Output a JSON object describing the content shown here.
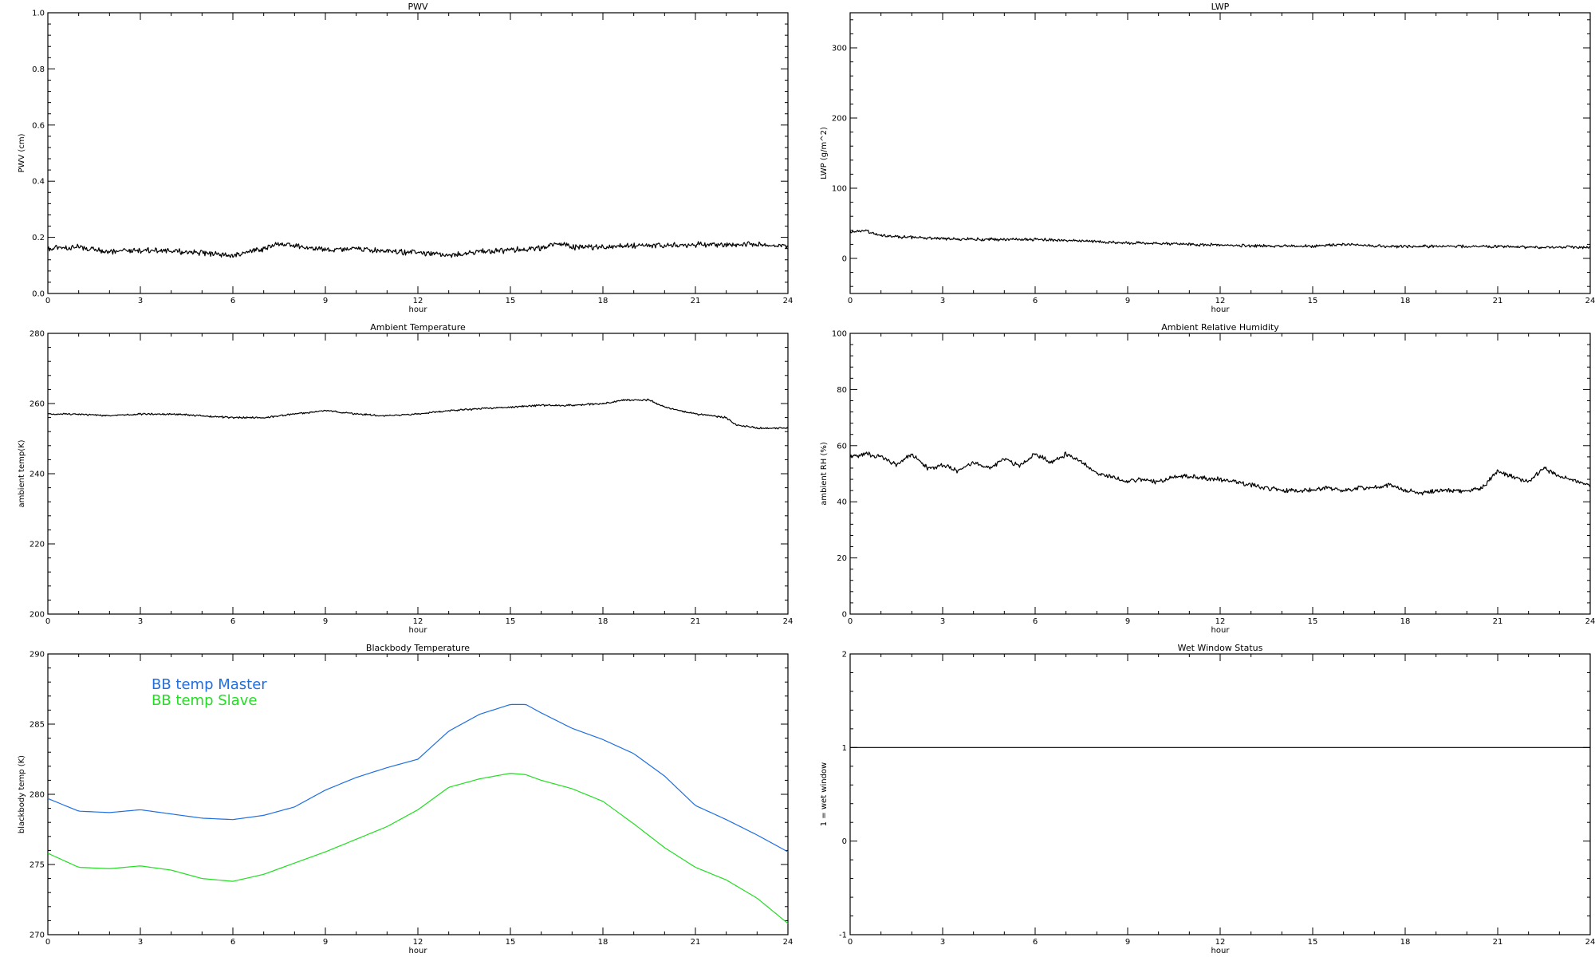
{
  "chart_data": [
    {
      "type": "line",
      "title": "PWV",
      "xlabel": "hour",
      "ylabel": "PWV (cm)",
      "xlim": [
        0,
        24
      ],
      "ylim": [
        0,
        1.0
      ],
      "xticks": [
        0,
        3,
        6,
        9,
        12,
        15,
        18,
        21,
        24
      ],
      "yticks": [
        0.0,
        0.2,
        0.4,
        0.6,
        0.8,
        1.0
      ],
      "ytick_labels": [
        "0.0",
        "0.2",
        "0.4",
        "0.6",
        "0.8",
        "1.0"
      ],
      "noise": 0.012,
      "series": [
        {
          "color": "#000000",
          "x": [
            0,
            1,
            2,
            3,
            4,
            5,
            6,
            7,
            7.5,
            8,
            9,
            10,
            11,
            12,
            13,
            14,
            15,
            16,
            16.5,
            17,
            18,
            19,
            20,
            21,
            22,
            23,
            24
          ],
          "y": [
            0.16,
            0.165,
            0.15,
            0.155,
            0.15,
            0.145,
            0.135,
            0.16,
            0.18,
            0.17,
            0.155,
            0.16,
            0.15,
            0.145,
            0.135,
            0.15,
            0.155,
            0.16,
            0.18,
            0.165,
            0.165,
            0.17,
            0.17,
            0.175,
            0.175,
            0.175,
            0.17
          ]
        }
      ]
    },
    {
      "type": "line",
      "title": "LWP",
      "xlabel": "hour",
      "ylabel": "LWP (g/m^2)",
      "xlim": [
        0,
        24
      ],
      "ylim": [
        -50,
        350
      ],
      "xticks": [
        0,
        3,
        6,
        9,
        12,
        15,
        18,
        21,
        24
      ],
      "yticks": [
        0,
        100,
        200,
        300
      ],
      "ytick_labels": [
        "0",
        "100",
        "200",
        "300"
      ],
      "noise": 2.5,
      "series": [
        {
          "color": "#000000",
          "x": [
            0,
            0.5,
            1,
            2,
            3,
            4,
            5,
            6,
            7,
            8,
            9,
            10,
            11,
            12,
            13,
            14,
            15,
            16,
            17,
            18,
            19,
            20,
            21,
            22,
            23,
            24
          ],
          "y": [
            38,
            40,
            32,
            30,
            28,
            27,
            27,
            27,
            26,
            24,
            22,
            21,
            20,
            19,
            18,
            18,
            17,
            20,
            18,
            17,
            17,
            17,
            17,
            16,
            16,
            16
          ]
        }
      ]
    },
    {
      "type": "line",
      "title": "Ambient Temperature",
      "xlabel": "hour",
      "ylabel": "ambient temp(K)",
      "xlim": [
        0,
        24
      ],
      "ylim": [
        200,
        280
      ],
      "xticks": [
        0,
        3,
        6,
        9,
        12,
        15,
        18,
        21,
        24
      ],
      "yticks": [
        200,
        220,
        240,
        260,
        280
      ],
      "ytick_labels": [
        "200",
        "220",
        "240",
        "260",
        "280"
      ],
      "noise": 0.3,
      "series": [
        {
          "color": "#000000",
          "x": [
            0,
            1,
            2,
            3,
            4,
            5,
            6,
            7,
            8,
            9,
            10,
            11,
            12,
            13,
            14,
            15,
            16,
            17,
            18,
            18.7,
            19.5,
            20,
            21,
            22,
            22.3,
            23,
            24
          ],
          "y": [
            257,
            257,
            256.5,
            257,
            257,
            256.5,
            256,
            256,
            257,
            258,
            257,
            256.5,
            257,
            258,
            258.5,
            259,
            259.5,
            259.5,
            260,
            261,
            261,
            259,
            257,
            256,
            254,
            253,
            253
          ]
        }
      ]
    },
    {
      "type": "line",
      "title": "Ambient Relative Humidity",
      "xlabel": "hour",
      "ylabel": "ambient RH (%)",
      "xlim": [
        0,
        24
      ],
      "ylim": [
        0,
        100
      ],
      "xticks": [
        0,
        3,
        6,
        9,
        12,
        15,
        18,
        21,
        24
      ],
      "yticks": [
        0,
        20,
        40,
        60,
        80,
        100
      ],
      "ytick_labels": [
        "0",
        "20",
        "40",
        "60",
        "80",
        "100"
      ],
      "noise": 1.0,
      "series": [
        {
          "color": "#000000",
          "x": [
            0,
            0.5,
            1,
            1.5,
            2,
            2.5,
            3,
            3.5,
            4,
            4.5,
            5,
            5.5,
            6,
            6.5,
            7,
            7.5,
            8,
            8.5,
            9,
            9.5,
            10,
            10.5,
            11,
            12,
            13,
            13.5,
            14,
            15,
            15.5,
            16,
            16.5,
            17,
            17.5,
            18,
            18.5,
            19,
            19.5,
            20,
            20.5,
            21,
            21.5,
            22,
            22.5,
            23,
            24
          ],
          "y": [
            56,
            57,
            56,
            53,
            57,
            52,
            53,
            51,
            54,
            52,
            55,
            53,
            57,
            54,
            57,
            54,
            50,
            49,
            47,
            48,
            47,
            49,
            49,
            48,
            46,
            45,
            44,
            44,
            45,
            44,
            45,
            45,
            46,
            44,
            43,
            44,
            44,
            44,
            45,
            51,
            49,
            47,
            52,
            49,
            46
          ]
        }
      ]
    },
    {
      "type": "line",
      "title": "Blackbody Temperature",
      "xlabel": "hour",
      "ylabel": "blackbody temp (K)",
      "xlim": [
        0,
        24
      ],
      "ylim": [
        270,
        290
      ],
      "xticks": [
        0,
        3,
        6,
        9,
        12,
        15,
        18,
        21,
        24
      ],
      "yticks": [
        270,
        275,
        280,
        285,
        290
      ],
      "ytick_labels": [
        "270",
        "275",
        "280",
        "285",
        "290"
      ],
      "noise": 0,
      "legend": "top-left",
      "series": [
        {
          "name": "BB temp Master",
          "color": "#1f6fe0",
          "x": [
            0,
            1,
            2,
            3,
            4,
            5,
            6,
            7,
            8,
            9,
            10,
            11,
            12,
            13,
            14,
            15,
            15.5,
            16,
            17,
            18,
            19,
            20,
            21,
            22,
            23,
            24
          ],
          "y": [
            279.7,
            278.8,
            278.7,
            278.9,
            278.6,
            278.3,
            278.2,
            278.5,
            279.1,
            280.3,
            281.2,
            281.9,
            282.5,
            284.5,
            285.7,
            286.4,
            286.4,
            285.8,
            284.7,
            283.9,
            282.9,
            281.3,
            279.2,
            278.2,
            277.1,
            275.9
          ]
        },
        {
          "name": "BB temp Slave",
          "color": "#22dd22",
          "x": [
            0,
            1,
            2,
            3,
            4,
            5,
            6,
            7,
            8,
            9,
            10,
            11,
            12,
            13,
            14,
            15,
            15.5,
            16,
            17,
            18,
            19,
            20,
            21,
            22,
            23,
            24
          ],
          "y": [
            275.8,
            274.8,
            274.7,
            274.9,
            274.6,
            274.0,
            273.8,
            274.3,
            275.1,
            275.9,
            276.8,
            277.7,
            278.9,
            280.5,
            281.1,
            281.5,
            281.4,
            281.0,
            280.4,
            279.5,
            277.9,
            276.2,
            274.8,
            273.9,
            272.6,
            270.8
          ]
        }
      ]
    },
    {
      "type": "line",
      "title": "Wet Window Status",
      "xlabel": "hour",
      "ylabel": "1 = wet window",
      "xlim": [
        0,
        24
      ],
      "ylim": [
        -1,
        2
      ],
      "xticks": [
        0,
        3,
        6,
        9,
        12,
        15,
        18,
        21,
        24
      ],
      "yticks": [
        -1,
        0,
        1,
        2
      ],
      "ytick_labels": [
        "-1",
        "0",
        "1",
        "2"
      ],
      "noise": 0,
      "series": [
        {
          "color": "#000000",
          "x": [
            0,
            24
          ],
          "y": [
            1,
            1
          ]
        }
      ]
    }
  ]
}
